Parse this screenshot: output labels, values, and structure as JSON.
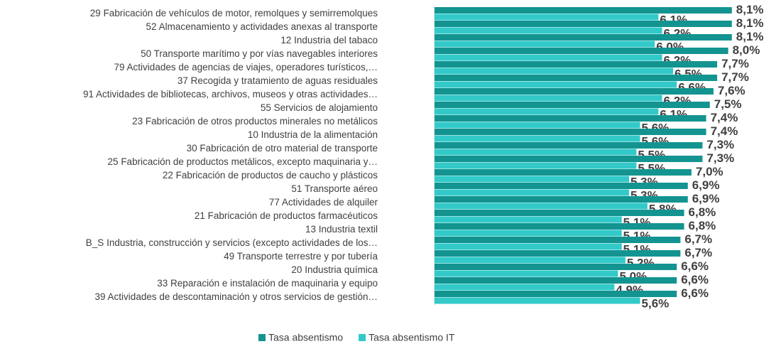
{
  "chart_data": {
    "type": "bar",
    "orientation": "horizontal",
    "categories": [
      "29 Fabricación de vehículos de motor, remolques y semirremolques",
      "52 Almacenamiento y actividades anexas al transporte",
      "12 Industria del tabaco",
      "50 Transporte marítimo y por vías navegables interiores",
      "79 Actividades de agencias de viajes, operadores turísticos,…",
      "37 Recogida y tratamiento de aguas residuales",
      "91 Actividades de bibliotecas, archivos, museos y otras actividades…",
      "55 Servicios de alojamiento",
      "23 Fabricación de otros productos minerales no metálicos",
      "10 Industria de la alimentación",
      "30 Fabricación de otro material de transporte",
      "25 Fabricación de productos metálicos, excepto maquinaria y…",
      "22 Fabricación de productos de caucho y plásticos",
      "51 Transporte aéreo",
      "77 Actividades de alquiler",
      "21 Fabricación de productos farmacéuticos",
      "13 Industria textil",
      "B_S Industria, construcción y servicios (excepto actividades de los…",
      "49 Transporte terrestre y por tubería",
      "20 Industria química",
      "33 Reparación e instalación de maquinaria y equipo",
      "39 Actividades de descontaminación y otros servicios de gestión…"
    ],
    "series": [
      {
        "name": "Tasa absentismo",
        "color": "#139490",
        "values": [
          8.1,
          8.1,
          8.1,
          8.0,
          7.7,
          7.7,
          7.6,
          7.5,
          7.4,
          7.4,
          7.3,
          7.3,
          7.0,
          6.9,
          6.9,
          6.8,
          6.8,
          6.7,
          6.7,
          6.6,
          6.6,
          6.6
        ],
        "value_labels": [
          "8,1%",
          "8,1%",
          "8,1%",
          "8,0%",
          "7,7%",
          "7,7%",
          "7,6%",
          "7,5%",
          "7,4%",
          "7,4%",
          "7,3%",
          "7,3%",
          "7,0%",
          "6,9%",
          "6,9%",
          "6,8%",
          "6,8%",
          "6,7%",
          "6,7%",
          "6,6%",
          "6,6%",
          "6,6%"
        ]
      },
      {
        "name": "Tasa absentismo IT",
        "color": "#33c9c9",
        "values": [
          6.1,
          6.2,
          6.0,
          6.2,
          6.5,
          6.6,
          6.2,
          6.1,
          5.6,
          5.6,
          5.5,
          5.5,
          5.3,
          5.3,
          5.8,
          5.1,
          5.1,
          5.1,
          5.2,
          5.0,
          4.9,
          5.6
        ],
        "value_labels": [
          "6,1%",
          "6,2%",
          "6,0%",
          "6,2%",
          "6,5%",
          "6,6%",
          "6,2%",
          "6,1%",
          "5,6%",
          "5,6%",
          "5,5%",
          "5,5%",
          "5,3%",
          "5,3%",
          "5,8%",
          "5,1%",
          "5,1%",
          "5,1%",
          "5,2%",
          "5,0%",
          "4,9%",
          "5,6%"
        ]
      }
    ],
    "legend": "bottom"
  }
}
